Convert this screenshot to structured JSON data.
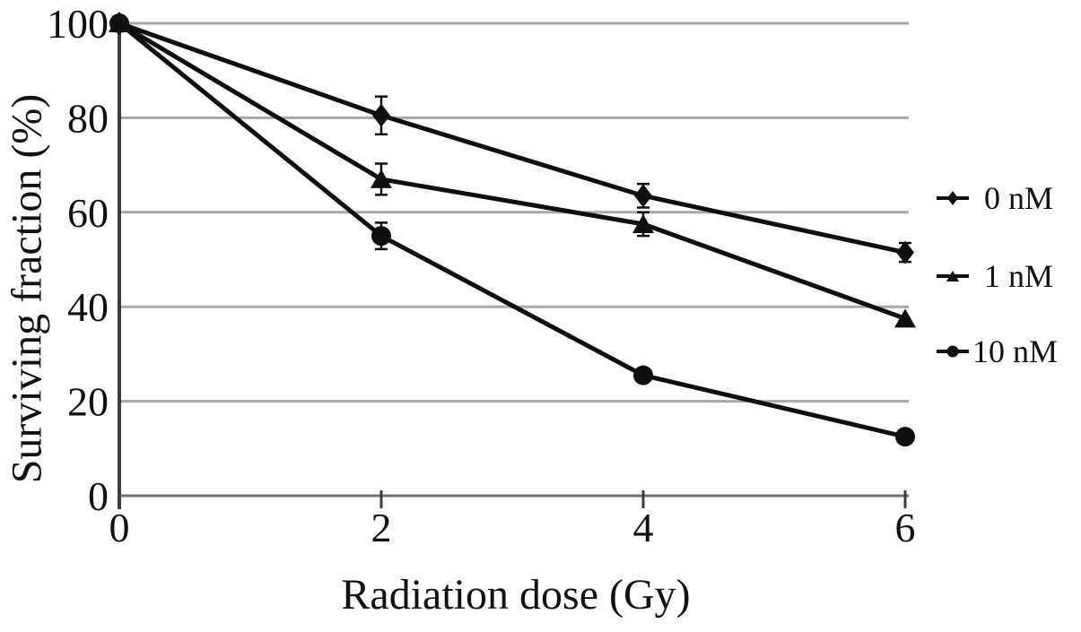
{
  "chart_data": {
    "type": "line",
    "title": "",
    "xlabel": "Radiation dose (Gy)",
    "ylabel": "Surviving fraction (%)",
    "xlim": [
      0,
      6
    ],
    "ylim": [
      0,
      100
    ],
    "x_ticks": [
      0,
      2,
      4,
      6
    ],
    "y_ticks": [
      0,
      20,
      40,
      60,
      80,
      100
    ],
    "grid": "horizontal-only",
    "legend_position": "right-outside",
    "x": [
      0,
      2,
      4,
      6
    ],
    "series": [
      {
        "name": "0 nM",
        "marker": "diamond",
        "values": [
          100,
          80.5,
          63.5,
          51.5
        ],
        "errors": [
          0,
          4,
          2.5,
          2
        ]
      },
      {
        "name": "1 nM",
        "marker": "triangle",
        "values": [
          100,
          67,
          57.5,
          37.5
        ],
        "errors": [
          0,
          3.3,
          2.5,
          0
        ]
      },
      {
        "name": "10 nM",
        "marker": "circle",
        "values": [
          100,
          55,
          25.5,
          12.5
        ],
        "errors": [
          0,
          2.8,
          0,
          0
        ]
      }
    ],
    "colors": {
      "series": "#0f0f0f",
      "grid": "#a8a8a8",
      "y_axis": "#3c3c3c",
      "x_axis": "#707070",
      "tick": "#3c3c3c",
      "text": "#111111",
      "background": "#ffffff"
    }
  }
}
